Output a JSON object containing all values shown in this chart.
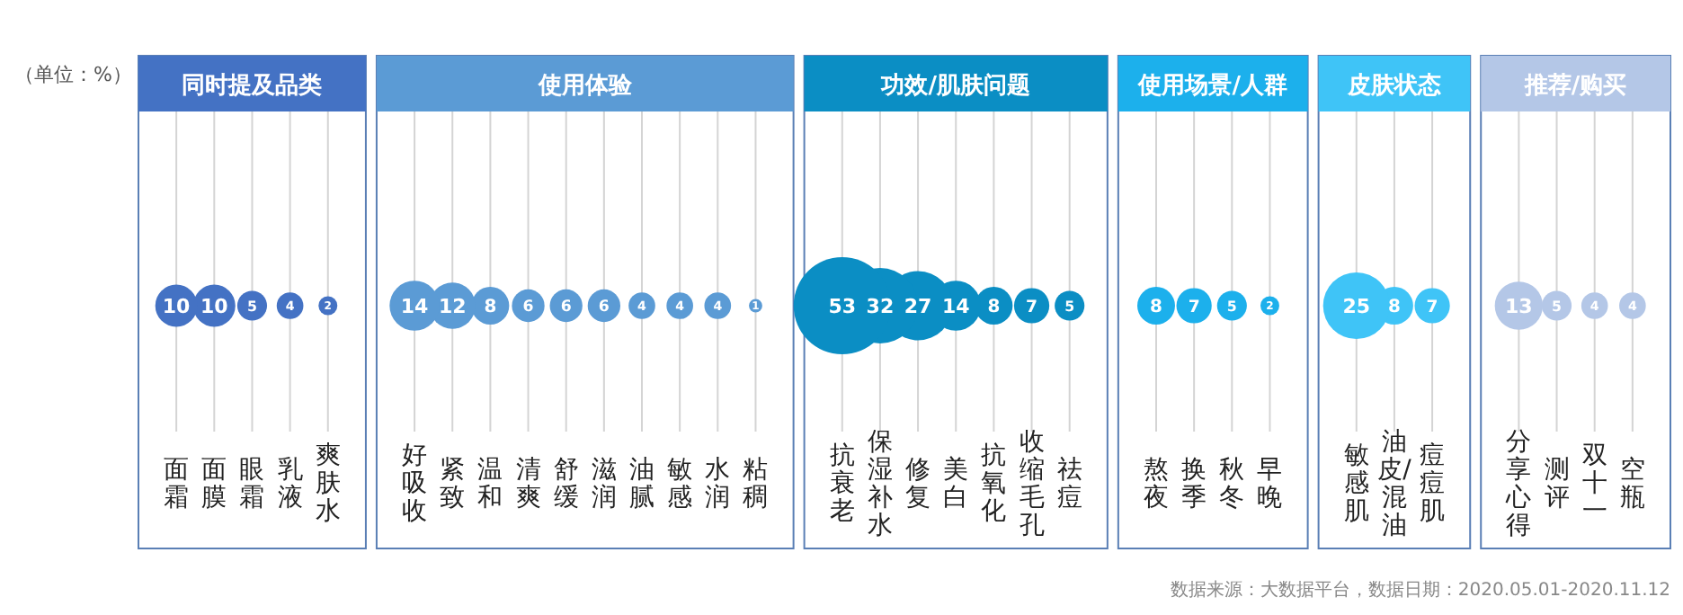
{
  "chart_data": [
    {
      "type": "other",
      "title": "同时提及品类",
      "categories": [
        "面霜",
        "面膜",
        "眼霜",
        "乳液",
        "爽肤水"
      ],
      "values": [
        10,
        10,
        5,
        4,
        2
      ],
      "color": "#4472c4",
      "data_labels": true,
      "annotations": [
        "（单位：%）"
      ]
    },
    {
      "type": "other",
      "title": "使用体验",
      "categories": [
        "好吸收",
        "紧致",
        "温和",
        "清爽",
        "舒缓",
        "滋润",
        "油腻",
        "敏感",
        "水润",
        "粘稠"
      ],
      "values": [
        14,
        12,
        8,
        6,
        6,
        6,
        4,
        4,
        4,
        1
      ],
      "color": "#5b9bd5",
      "data_labels": true
    },
    {
      "type": "other",
      "title": "功效/肌肤问题",
      "categories": [
        "抗衰老",
        "保湿补水",
        "修复",
        "美白",
        "抗氧化",
        "收缩毛孔",
        "祛痘"
      ],
      "values": [
        53,
        32,
        27,
        14,
        8,
        7,
        5
      ],
      "color": "#0b8ec4",
      "data_labels": true
    },
    {
      "type": "other",
      "title": "使用场景/人群",
      "categories": [
        "熬夜",
        "换季",
        "秋冬",
        "早晚"
      ],
      "values": [
        8,
        7,
        5,
        2
      ],
      "color": "#1cb0ec",
      "data_labels": true
    },
    {
      "type": "other",
      "title": "皮肤状态",
      "categories": [
        "敏感肌",
        "油皮/混油",
        "痘痘肌"
      ],
      "values": [
        25,
        8,
        7
      ],
      "color": "#3fc4f7",
      "data_labels": true
    },
    {
      "type": "other",
      "title": "推荐/购买",
      "categories": [
        "分享心得",
        "测评",
        "双十一",
        "空瓶"
      ],
      "values": [
        13,
        5,
        4,
        4
      ],
      "color": "#b4c7e7",
      "data_labels": true,
      "annotations": [
        "数据来源：大数据平台，数据日期：2020.05.01-2020.11.12"
      ]
    }
  ]
}
